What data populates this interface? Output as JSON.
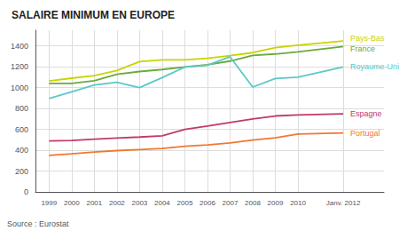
{
  "chart_data": {
    "type": "line",
    "title": "SALAIRE MINIMUM EN EUROPE",
    "annotations": [
      "Source : Eurostat"
    ],
    "x": [
      1999,
      2000,
      2001,
      2002,
      2003,
      2004,
      2005,
      2006,
      2007,
      2008,
      2009,
      2010,
      2012.0
    ],
    "xlim": [
      1998.4,
      2013.8
    ],
    "xticks": [
      1999,
      2000,
      2001,
      2002,
      2003,
      2004,
      2005,
      2006,
      2007,
      2008,
      2009,
      2010,
      {
        "value": 2012.0,
        "label": "Janv. 2012"
      }
    ],
    "series": [
      {
        "name": "Pays-Bas",
        "color": "#c8d400",
        "values": [
          1063,
          1090,
          1115,
          1163,
          1249,
          1265,
          1265,
          1280,
          1307,
          1335,
          1382,
          1407,
          1446
        ]
      },
      {
        "name": "France",
        "color": "#6aaa3a",
        "values": [
          1040,
          1040,
          1066,
          1127,
          1154,
          1173,
          1197,
          1218,
          1254,
          1308,
          1322,
          1343,
          1393
        ]
      },
      {
        "name": "Royaume-Uni",
        "color": "#5bc8c8",
        "values": [
          895,
          960,
          1025,
          1050,
          1000,
          1095,
          1197,
          1215,
          1295,
          1005,
          1087,
          1099,
          1198
        ]
      },
      {
        "name": "Espagne",
        "color": "#c0396e",
        "values": [
          488,
          493,
          505,
          516,
          526,
          537,
          599,
          631,
          666,
          700,
          728,
          738,
          748
        ]
      },
      {
        "name": "Portugal",
        "color": "#f07830",
        "values": [
          350,
          365,
          383,
          396,
          406,
          416,
          437,
          450,
          470,
          497,
          519,
          554,
          566
        ]
      }
    ],
    "ylim": [
      0,
      1550
    ],
    "yticks": [
      0,
      200,
      400,
      600,
      800,
      1000,
      1200,
      1400
    ],
    "grid": true
  }
}
